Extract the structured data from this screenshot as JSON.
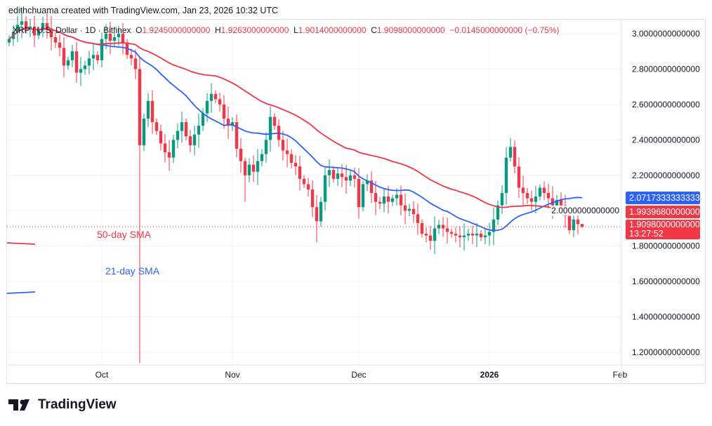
{
  "header": {
    "credit": "edithchuama created with TradingView.com, Jan 23, 2026 10:32 UTC",
    "symbol": "XRP / U.S. Dollar · 1D · Bitfinex",
    "o_label": "O",
    "o": "1.9245000000000",
    "h_label": "H",
    "h": "1.9263000000000",
    "l_label": "L",
    "l": "1.9014000000000",
    "c_label": "C",
    "c": "1.9098000000000",
    "change": "−0.0145000000000 (−0.75%)"
  },
  "tags": {
    "sma21": "2.0717333333333",
    "sma50": "1.9939680000000",
    "price": "1.9098000000000",
    "countdown": "13:27:52"
  },
  "annotations": {
    "sma50": "50-day SMA",
    "sma21": "21-day SMA"
  },
  "logo": "TradingView",
  "colors": {
    "up": "#089981",
    "down": "#f23645",
    "sma21": "#2962ff",
    "sma50": "#f23645"
  },
  "chart_data": {
    "type": "candlestick",
    "start_date": "2025-09-09",
    "x_ticks": [
      {
        "label": "Oct",
        "date": "2025-10-01"
      },
      {
        "label": "Nov",
        "date": "2025-11-01"
      },
      {
        "label": "Dec",
        "date": "2025-12-01"
      },
      {
        "label": "2026",
        "date": "2026-01-01"
      },
      {
        "label": "Feb",
        "date": "2026-02-01"
      }
    ],
    "y_ticks": [
      "3.0000000000000",
      "2.8000000000000",
      "2.6000000000000",
      "2.4000000000000",
      "2.2000000000000",
      "2.0000000000000",
      "1.8000000000000",
      "1.6000000000000",
      "1.4000000000000",
      "1.2000000000000"
    ],
    "ylim": [
      1.12,
      3.1
    ],
    "first_open": 2.95,
    "close": [
      2.97,
      3.01,
      3.05,
      3.07,
      3.03,
      3.04,
      2.99,
      3.02,
      3.06,
      3.03,
      2.98,
      2.95,
      2.92,
      2.82,
      2.85,
      2.9,
      2.78,
      2.8,
      2.82,
      2.86,
      2.88,
      2.85,
      2.97,
      3.0,
      2.96,
      2.98,
      3.0,
      2.95,
      2.88,
      2.86,
      2.8,
      2.37,
      2.52,
      2.62,
      2.5,
      2.45,
      2.38,
      2.33,
      2.3,
      2.4,
      2.45,
      2.5,
      2.42,
      2.37,
      2.43,
      2.48,
      2.55,
      2.62,
      2.66,
      2.63,
      2.6,
      2.52,
      2.48,
      2.5,
      2.35,
      2.28,
      2.2,
      2.26,
      2.22,
      2.28,
      2.32,
      2.4,
      2.53,
      2.48,
      2.4,
      2.34,
      2.32,
      2.27,
      2.25,
      2.18,
      2.15,
      2.12,
      2.02,
      1.94,
      2.05,
      2.2,
      2.23,
      2.18,
      2.21,
      2.19,
      2.17,
      2.2,
      2.18,
      2.02,
      2.15,
      2.17,
      2.1,
      2.05,
      2.04,
      2.08,
      2.05,
      2.07,
      2.09,
      2.03,
      2.0,
      2.01,
      1.98,
      1.93,
      1.87,
      1.86,
      1.83,
      1.9,
      1.92,
      1.9,
      1.88,
      1.87,
      1.86,
      1.85,
      1.86,
      1.87,
      1.86,
      1.87,
      1.85,
      1.86,
      1.88,
      1.95,
      2.03,
      2.1,
      2.3,
      2.36,
      2.25,
      2.13,
      2.1,
      2.07,
      2.05,
      2.08,
      2.13,
      2.1,
      2.07,
      2.03,
      2.06,
      2.03,
      1.97,
      1.89,
      1.95,
      1.9245,
      1.9098
    ],
    "notable_lows": {
      "2025-10-10": 1.14,
      "2025-11-04": 2.05,
      "2025-11-21": 1.82,
      "2025-12-18": 1.78
    },
    "notable_highs": {
      "2026-01-06": 2.41
    },
    "sma_periods": [
      21,
      50
    ],
    "last_price": 1.9098
  }
}
